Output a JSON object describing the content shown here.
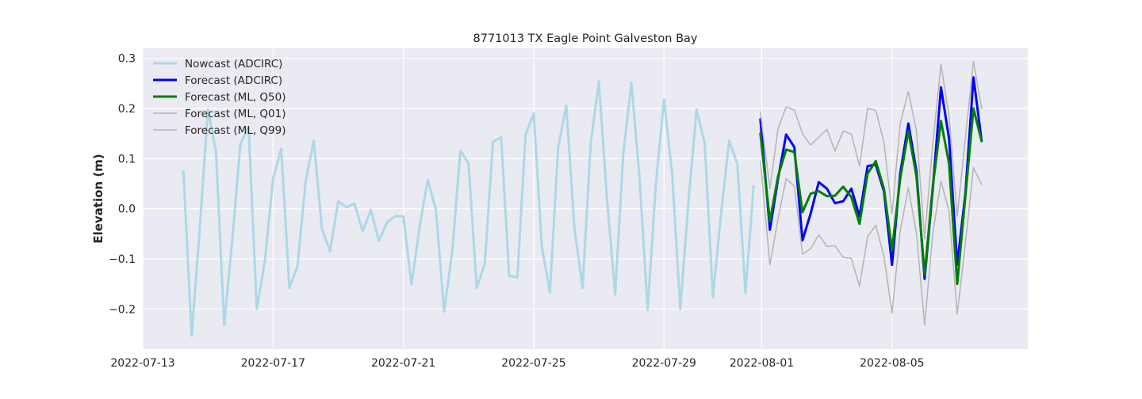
{
  "chart_data": {
    "type": "line",
    "title": "8771013 TX Eagle Point Galveston Bay",
    "xlabel": "",
    "ylabel": "Elevation (m)",
    "x_ticks": [
      "2022-07-13",
      "2022-07-17",
      "2022-07-21",
      "2022-07-25",
      "2022-07-29",
      "2022-08-01",
      "2022-08-05"
    ],
    "y_ticks": [
      "−0.2",
      "−0.1",
      "0.0",
      "0.1",
      "0.2",
      "0.3"
    ],
    "y_tick_values": [
      -0.2,
      -0.1,
      0.0,
      0.1,
      0.2,
      0.3
    ],
    "xlim": [
      "2022-07-13T00:00",
      "2022-08-09T04:00"
    ],
    "ylim": [
      -0.28,
      0.32
    ],
    "grid": true,
    "legend_position": "top-left",
    "series": [
      {
        "name": "Nowcast (ADCIRC)",
        "color": "#add8e6",
        "width": 3,
        "x": [
          "2022-07-14T06:00",
          "2022-07-14T12:00",
          "2022-07-14T18:00",
          "2022-07-15T00:00",
          "2022-07-15T06:00",
          "2022-07-15T12:00",
          "2022-07-15T18:00",
          "2022-07-16T00:00",
          "2022-07-16T06:00",
          "2022-07-16T12:00",
          "2022-07-16T18:00",
          "2022-07-17T00:00",
          "2022-07-17T06:00",
          "2022-07-17T12:00",
          "2022-07-17T18:00",
          "2022-07-18T00:00",
          "2022-07-18T06:00",
          "2022-07-18T12:00",
          "2022-07-18T18:00",
          "2022-07-19T00:00",
          "2022-07-19T06:00",
          "2022-07-19T12:00",
          "2022-07-19T18:00",
          "2022-07-20T00:00",
          "2022-07-20T06:00",
          "2022-07-20T12:00",
          "2022-07-20T18:00",
          "2022-07-21T00:00",
          "2022-07-21T06:00",
          "2022-07-21T12:00",
          "2022-07-21T18:00",
          "2022-07-22T00:00",
          "2022-07-22T06:00",
          "2022-07-22T12:00",
          "2022-07-22T18:00",
          "2022-07-23T00:00",
          "2022-07-23T06:00",
          "2022-07-23T12:00",
          "2022-07-23T18:00",
          "2022-07-24T00:00",
          "2022-07-24T06:00",
          "2022-07-24T12:00",
          "2022-07-24T18:00",
          "2022-07-25T00:00",
          "2022-07-25T06:00",
          "2022-07-25T12:00",
          "2022-07-25T18:00",
          "2022-07-26T00:00",
          "2022-07-26T06:00",
          "2022-07-26T12:00",
          "2022-07-26T18:00",
          "2022-07-27T00:00",
          "2022-07-27T06:00",
          "2022-07-27T12:00",
          "2022-07-27T18:00",
          "2022-07-28T00:00",
          "2022-07-28T06:00",
          "2022-07-28T12:00",
          "2022-07-28T18:00",
          "2022-07-29T00:00",
          "2022-07-29T06:00",
          "2022-07-29T12:00",
          "2022-07-29T18:00",
          "2022-07-30T00:00",
          "2022-07-30T06:00",
          "2022-07-30T12:00",
          "2022-07-30T18:00",
          "2022-07-31T00:00",
          "2022-07-31T06:00",
          "2022-07-31T12:00",
          "2022-07-31T18:00"
        ],
        "y": [
          0.075,
          -0.253,
          -0.04,
          0.198,
          0.113,
          -0.232,
          -0.06,
          0.13,
          0.162,
          -0.2,
          -0.104,
          0.06,
          0.12,
          -0.158,
          -0.115,
          0.055,
          0.136,
          -0.04,
          -0.085,
          0.015,
          0.003,
          0.01,
          -0.045,
          -0.002,
          -0.064,
          -0.027,
          -0.015,
          -0.015,
          -0.151,
          -0.035,
          0.058,
          -0.002,
          -0.205,
          -0.085,
          0.116,
          0.09,
          -0.158,
          -0.11,
          0.133,
          0.143,
          -0.134,
          -0.137,
          0.148,
          0.19,
          -0.075,
          -0.167,
          0.122,
          0.206,
          -0.038,
          -0.158,
          0.13,
          0.254,
          0.02,
          -0.171,
          0.11,
          0.252,
          0.06,
          -0.202,
          0.05,
          0.218,
          0.07,
          -0.2,
          0.015,
          0.198,
          0.13,
          -0.176,
          -0.01,
          0.136,
          0.09,
          -0.168,
          0.045
        ]
      },
      {
        "name": "Forecast (ADCIRC)",
        "color": "#0000ff",
        "width": 3,
        "x": [
          "2022-07-31T23:00",
          "2022-08-01T06:00",
          "2022-08-01T12:00",
          "2022-08-01T18:00",
          "2022-08-02T00:00",
          "2022-08-02T06:00",
          "2022-08-02T12:00",
          "2022-08-02T18:00",
          "2022-08-03T00:00",
          "2022-08-03T06:00",
          "2022-08-03T12:00",
          "2022-08-03T18:00",
          "2022-08-04T00:00",
          "2022-08-04T06:00",
          "2022-08-04T12:00",
          "2022-08-04T18:00",
          "2022-08-05T00:00",
          "2022-08-05T06:00",
          "2022-08-05T12:00",
          "2022-08-05T18:00",
          "2022-08-06T00:00",
          "2022-08-06T06:00",
          "2022-08-06T12:00",
          "2022-08-06T18:00",
          "2022-08-07T00:00",
          "2022-08-07T06:00",
          "2022-08-07T12:00",
          "2022-08-07T18:00"
        ],
        "y": [
          0.178,
          -0.042,
          0.06,
          0.148,
          0.123,
          -0.063,
          -0.01,
          0.053,
          0.04,
          0.011,
          0.015,
          0.04,
          -0.015,
          0.085,
          0.088,
          0.035,
          -0.112,
          0.07,
          0.17,
          0.075,
          -0.14,
          0.04,
          0.242,
          0.14,
          -0.112,
          0.03,
          0.262,
          0.135
        ]
      },
      {
        "name": "Forecast (ML, Q50)",
        "color": "#008000",
        "width": 3,
        "x": [
          "2022-07-31T23:00",
          "2022-08-01T06:00",
          "2022-08-01T12:00",
          "2022-08-01T18:00",
          "2022-08-02T00:00",
          "2022-08-02T06:00",
          "2022-08-02T12:00",
          "2022-08-02T18:00",
          "2022-08-03T00:00",
          "2022-08-03T06:00",
          "2022-08-03T12:00",
          "2022-08-03T18:00",
          "2022-08-04T00:00",
          "2022-08-04T06:00",
          "2022-08-04T12:00",
          "2022-08-04T18:00",
          "2022-08-05T00:00",
          "2022-08-05T06:00",
          "2022-08-05T12:00",
          "2022-08-05T18:00",
          "2022-08-06T00:00",
          "2022-08-06T06:00",
          "2022-08-06T12:00",
          "2022-08-06T18:00",
          "2022-08-07T00:00",
          "2022-08-07T06:00",
          "2022-08-07T12:00",
          "2022-08-07T18:00"
        ],
        "y": [
          0.15,
          -0.025,
          0.065,
          0.118,
          0.113,
          -0.007,
          0.03,
          0.035,
          0.025,
          0.026,
          0.044,
          0.023,
          -0.03,
          0.07,
          0.095,
          0.04,
          -0.082,
          0.06,
          0.155,
          0.065,
          -0.132,
          0.045,
          0.175,
          0.09,
          -0.15,
          0.025,
          0.2,
          0.135
        ]
      },
      {
        "name": "Forecast (ML, Q01)",
        "color": "#b4b4b4",
        "width": 1.5,
        "x": [
          "2022-07-31T23:00",
          "2022-08-01T06:00",
          "2022-08-01T12:00",
          "2022-08-01T18:00",
          "2022-08-02T00:00",
          "2022-08-02T06:00",
          "2022-08-02T12:00",
          "2022-08-02T18:00",
          "2022-08-03T00:00",
          "2022-08-03T06:00",
          "2022-08-03T12:00",
          "2022-08-03T18:00",
          "2022-08-04T00:00",
          "2022-08-04T06:00",
          "2022-08-04T12:00",
          "2022-08-04T18:00",
          "2022-08-05T00:00",
          "2022-08-05T06:00",
          "2022-08-05T12:00",
          "2022-08-05T18:00",
          "2022-08-06T00:00",
          "2022-08-06T06:00",
          "2022-08-06T12:00",
          "2022-08-06T18:00",
          "2022-08-07T00:00",
          "2022-08-07T06:00",
          "2022-08-07T12:00",
          "2022-08-07T18:00"
        ],
        "y": [
          0.095,
          -0.112,
          -0.02,
          0.06,
          0.045,
          -0.09,
          -0.08,
          -0.052,
          -0.075,
          -0.074,
          -0.097,
          -0.099,
          -0.155,
          -0.056,
          -0.033,
          -0.095,
          -0.208,
          -0.045,
          0.042,
          -0.05,
          -0.232,
          -0.05,
          0.055,
          -0.005,
          -0.21,
          -0.07,
          0.082,
          0.048
        ]
      },
      {
        "name": "Forecast (ML, Q99)",
        "color": "#b4b4b4",
        "width": 1.5,
        "x": [
          "2022-07-31T23:00",
          "2022-08-01T06:00",
          "2022-08-01T12:00",
          "2022-08-01T18:00",
          "2022-08-02T00:00",
          "2022-08-02T06:00",
          "2022-08-02T12:00",
          "2022-08-02T18:00",
          "2022-08-03T00:00",
          "2022-08-03T06:00",
          "2022-08-03T12:00",
          "2022-08-03T18:00",
          "2022-08-04T00:00",
          "2022-08-04T06:00",
          "2022-08-04T12:00",
          "2022-08-04T18:00",
          "2022-08-05T00:00",
          "2022-08-05T06:00",
          "2022-08-05T12:00",
          "2022-08-05T18:00",
          "2022-08-06T00:00",
          "2022-08-06T06:00",
          "2022-08-06T12:00",
          "2022-08-06T18:00",
          "2022-08-07T00:00",
          "2022-08-07T06:00",
          "2022-08-07T12:00",
          "2022-08-07T18:00"
        ],
        "y": [
          0.193,
          0.04,
          0.16,
          0.203,
          0.197,
          0.15,
          0.127,
          0.143,
          0.158,
          0.115,
          0.155,
          0.149,
          0.085,
          0.2,
          0.196,
          0.133,
          -0.01,
          0.17,
          0.234,
          0.155,
          -0.06,
          0.13,
          0.288,
          0.185,
          -0.015,
          0.14,
          0.294,
          0.2
        ]
      }
    ]
  }
}
